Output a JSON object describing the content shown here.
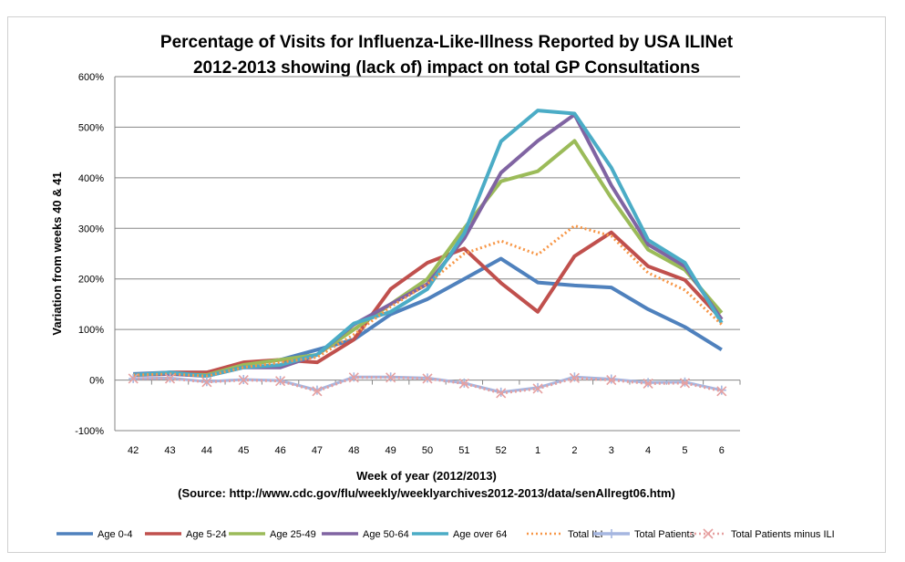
{
  "chart_data": {
    "type": "line",
    "title": [
      "Percentage of Visits for Influenza-Like-Illness Reported by USA ILINet",
      "2012-2013 showing (lack of) impact on total GP Consultations"
    ],
    "xlabel": "Week of year (2012/2013)",
    "xlabel_source": "(Source: http://www.cdc.gov/flu/weekly/weeklyarchives2012-2013/data/senAllregt06.htm)",
    "ylabel": "Variation from weeks 40 & 41",
    "categories": [
      "42",
      "43",
      "44",
      "45",
      "46",
      "47",
      "48",
      "49",
      "50",
      "51",
      "52",
      "1",
      "2",
      "3",
      "4",
      "5",
      "6"
    ],
    "yticks": [
      "600%",
      "500%",
      "400%",
      "300%",
      "200%",
      "100%",
      "0%",
      "-100%"
    ],
    "ylim": [
      -100,
      600
    ],
    "y_unit": "%",
    "grid": true,
    "legend_position": "bottom",
    "series": [
      {
        "name": "Age 0-4",
        "color": "#4F81BD",
        "style": "solid",
        "marker": "none",
        "values": [
          12,
          15,
          15,
          30,
          40,
          60,
          80,
          130,
          160,
          200,
          240,
          193,
          187,
          183,
          140,
          105,
          60
        ]
      },
      {
        "name": "Age 5-24",
        "color": "#C0504D",
        "style": "solid",
        "marker": "none",
        "values": [
          10,
          15,
          15,
          35,
          40,
          35,
          80,
          180,
          232,
          260,
          192,
          135,
          245,
          292,
          225,
          198,
          120
        ]
      },
      {
        "name": "Age 25-49",
        "color": "#9BBB59",
        "style": "solid",
        "marker": "none",
        "values": [
          10,
          12,
          10,
          30,
          40,
          50,
          100,
          150,
          200,
          300,
          393,
          413,
          473,
          360,
          258,
          218,
          133
        ]
      },
      {
        "name": "Age 50-64",
        "color": "#8064A2",
        "style": "solid",
        "marker": "none",
        "values": [
          10,
          12,
          8,
          25,
          25,
          50,
          110,
          150,
          190,
          280,
          410,
          473,
          525,
          385,
          268,
          225,
          120
        ]
      },
      {
        "name": "Age over 64",
        "color": "#4BACC6",
        "style": "solid",
        "marker": "none",
        "values": [
          10,
          15,
          8,
          25,
          30,
          50,
          112,
          135,
          180,
          290,
          472,
          533,
          527,
          420,
          277,
          232,
          113
        ]
      },
      {
        "name": "Total ILI",
        "color": "#F79646",
        "style": "dotted",
        "marker": "none",
        "values": [
          10,
          12,
          8,
          25,
          35,
          45,
          90,
          145,
          190,
          250,
          275,
          248,
          305,
          285,
          212,
          178,
          110
        ]
      },
      {
        "name": "Total Patients",
        "color": "#A5B6E0",
        "style": "solid",
        "marker": "plus",
        "values": [
          3,
          4,
          -3,
          1,
          -1,
          -20,
          6,
          6,
          4,
          -6,
          -24,
          -15,
          6,
          2,
          -5,
          -4,
          -20
        ]
      },
      {
        "name": "Total Patients minus ILI",
        "color": "#E6A0A0",
        "style": "dotted",
        "marker": "x",
        "values": [
          3,
          3,
          -4,
          0,
          -2,
          -22,
          5,
          5,
          3,
          -7,
          -26,
          -17,
          4,
          0,
          -7,
          -6,
          -22
        ]
      }
    ]
  }
}
